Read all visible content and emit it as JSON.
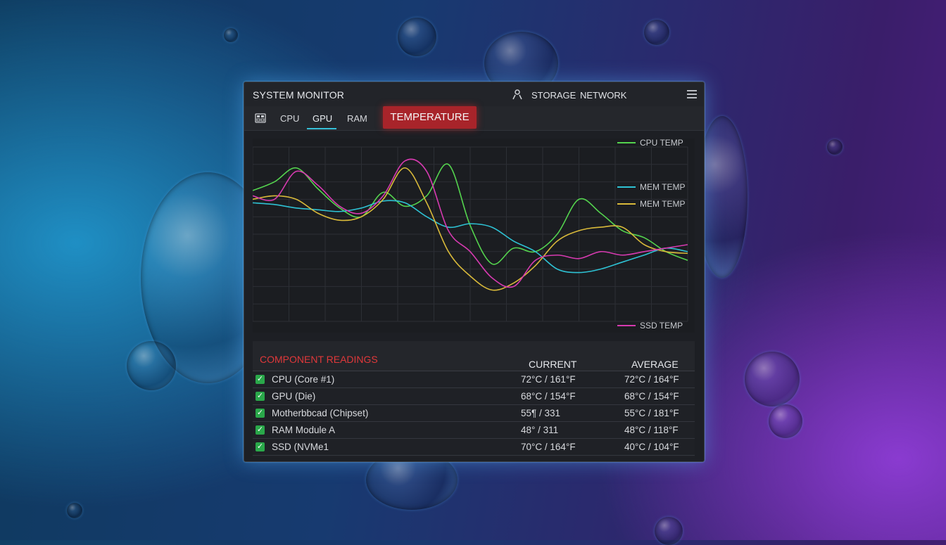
{
  "window": {
    "title": "SYSTEM MONITOR",
    "nav": {
      "storage": "STORAGE",
      "network": "NETWORK"
    }
  },
  "tabs": [
    {
      "label": "CPU"
    },
    {
      "label": "GPU"
    },
    {
      "label": "RAM"
    },
    {
      "label": "TEMPERATURE",
      "active": true
    }
  ],
  "icons": {
    "user": "user-icon",
    "menu": "hamburger-menu-icon",
    "chip": "chip-icon",
    "check": "checkbox-checked-icon"
  },
  "colors": {
    "accent_tab": "#a8242a",
    "tab_underline": "#35c0d8",
    "readings_title": "#e0383a",
    "check": "#2aa84a"
  },
  "chart_data": {
    "type": "line",
    "x": [
      0,
      1,
      2,
      3,
      4,
      5,
      6,
      7,
      8,
      9,
      10,
      11,
      12,
      13,
      14,
      15,
      16,
      17,
      18,
      19,
      20
    ],
    "ylim": [
      0,
      100
    ],
    "grid": true,
    "legend_placement": "right",
    "series": [
      {
        "name": "CPU TEMP",
        "color": "#54d34e",
        "values": [
          75,
          80,
          88,
          76,
          65,
          60,
          74,
          66,
          72,
          90,
          55,
          33,
          42,
          40,
          50,
          70,
          62,
          52,
          48,
          40,
          35
        ]
      },
      {
        "name": "MEM TEMP",
        "color": "#2ec2d4",
        "values": [
          68,
          67,
          65,
          64,
          63,
          65,
          69,
          68,
          60,
          54,
          56,
          54,
          46,
          40,
          30,
          28,
          30,
          34,
          38,
          42,
          40
        ]
      },
      {
        "name": "MEM TEMP",
        "color": "#d8b93a",
        "values": [
          70,
          72,
          70,
          62,
          58,
          60,
          70,
          88,
          68,
          40,
          26,
          18,
          22,
          32,
          46,
          52,
          54,
          54,
          44,
          40,
          39
        ]
      },
      {
        "name": "SSD TEMP",
        "color": "#d63ab0",
        "values": [
          72,
          70,
          86,
          78,
          66,
          62,
          72,
          92,
          86,
          52,
          40,
          25,
          20,
          35,
          38,
          36,
          40,
          38,
          40,
          42,
          44
        ]
      }
    ]
  },
  "readings": {
    "title": "COMPONENT READINGS",
    "columns": {
      "current": "CURRENT",
      "average": "AVERAGE"
    },
    "rows": [
      {
        "name": "CPU (Core #1)",
        "current": "72°C / 161°F",
        "average": "72°C / 164°F"
      },
      {
        "name": "GPU (Die)",
        "current": "68°C / 154°F",
        "average": "68°C / 154°F"
      },
      {
        "name": "Motherbbcad (Chipset)",
        "current": "55¶ / 331",
        "average": "55°C / 181°F"
      },
      {
        "name": "RAM Module A",
        "current": "48° / 311",
        "average": "48°C / 118°F"
      },
      {
        "name": "SSD (NVMe1",
        "current": "70°C / 164°F",
        "average": "40°C / 104°F"
      }
    ]
  }
}
